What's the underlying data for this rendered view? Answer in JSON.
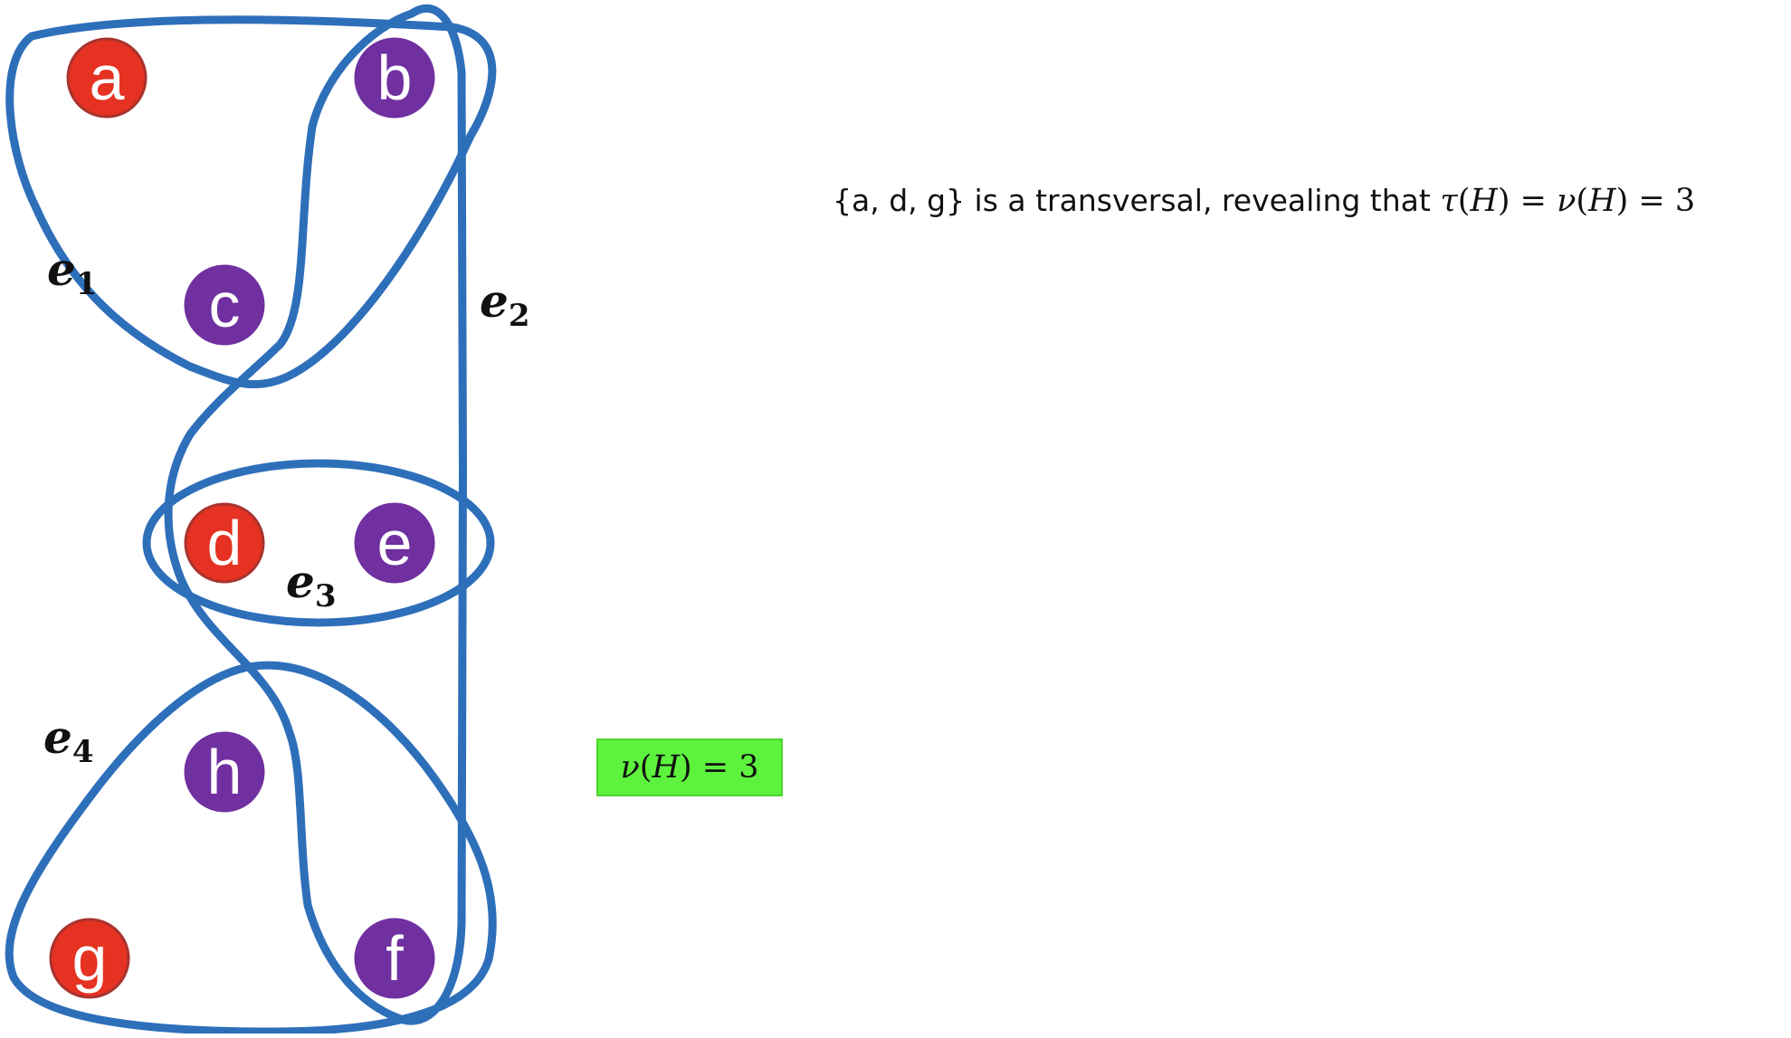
{
  "statement": {
    "prefix": "{a, d, g} is a transversal, revealing that ",
    "tau": "τ",
    "open1": "(",
    "h1": "H",
    "close1": ")",
    "eq1": " = ",
    "nu": "ν",
    "open2": "(",
    "h2": "H",
    "close2": ")",
    "eq2": " = ",
    "value": "3"
  },
  "matching_badge": {
    "nu": "ν",
    "open": "(",
    "h": "H",
    "close": ")",
    "eq": " = ",
    "value": "3",
    "color": "#5df23d"
  },
  "colors": {
    "edge_stroke": "#2e6fba",
    "transversal_node": "#e53222",
    "transversal_node_border": "#a9332e",
    "other_node": "#7030a0"
  },
  "nodes": [
    {
      "id": "a",
      "label": "a",
      "in_transversal": true
    },
    {
      "id": "b",
      "label": "b",
      "in_transversal": false
    },
    {
      "id": "c",
      "label": "c",
      "in_transversal": false
    },
    {
      "id": "d",
      "label": "d",
      "in_transversal": true
    },
    {
      "id": "e",
      "label": "e",
      "in_transversal": false
    },
    {
      "id": "h",
      "label": "h",
      "in_transversal": false
    },
    {
      "id": "g",
      "label": "g",
      "in_transversal": true
    },
    {
      "id": "f",
      "label": "f",
      "in_transversal": false
    }
  ],
  "hyperedges": [
    {
      "name": "e1",
      "letter": "e",
      "sub": "1",
      "members": [
        "a",
        "b",
        "c"
      ]
    },
    {
      "name": "e2",
      "letter": "e",
      "sub": "2",
      "members": [
        "b",
        "c",
        "d",
        "e",
        "f"
      ]
    },
    {
      "name": "e3",
      "letter": "e",
      "sub": "3",
      "members": [
        "d",
        "e"
      ]
    },
    {
      "name": "e4",
      "letter": "e",
      "sub": "4",
      "members": [
        "g",
        "h",
        "f"
      ]
    }
  ]
}
